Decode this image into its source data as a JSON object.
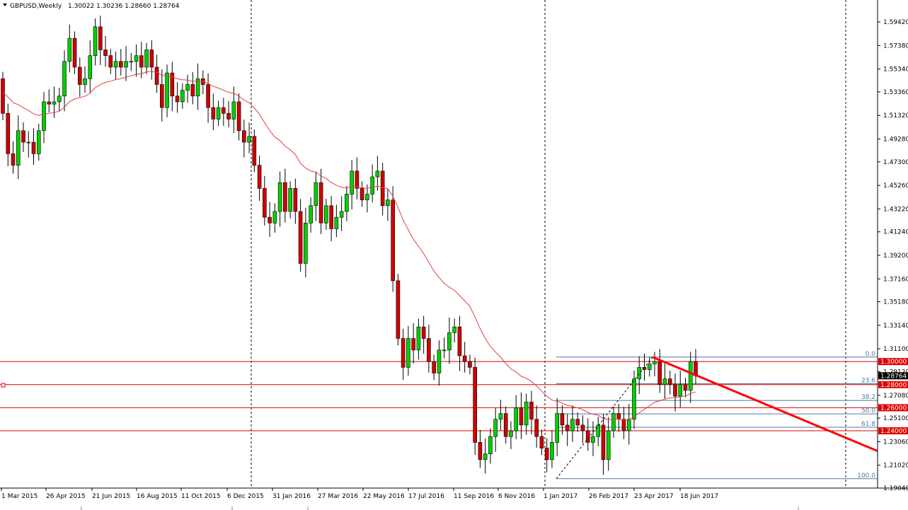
{
  "header": {
    "symbol": "GBPUSD,Weekly",
    "ohlc": "1.30022 1.30236 1.28660 1.28764"
  },
  "colors": {
    "bull": "#00d000",
    "bear": "#d00000",
    "ma": "#e04040",
    "level": "#e00000",
    "fib": "#5078a0",
    "trend": "#ff0000"
  },
  "chart_data": {
    "type": "candlestick",
    "ylim": [
      1.19,
      1.605
    ],
    "y_ticks": [
      "1.59420",
      "1.57380",
      "1.55340",
      "1.53360",
      "1.51320",
      "1.49280",
      "1.47300",
      "1.45260",
      "1.43220",
      "1.41240",
      "1.39200",
      "1.37160",
      "1.35180",
      "1.33140",
      "1.31100",
      "1.29120",
      "1.27080",
      "1.25100",
      "1.23060",
      "1.21020",
      "1.19040"
    ],
    "x_labels": [
      "1 Mar 2015",
      "26 Apr 2015",
      "21 Jun 2015",
      "16 Aug 2015",
      "11 Oct 2015",
      "6 Dec 2015",
      "31 Jan 2016",
      "27 Mar 2016",
      "22 May 2016",
      "17 Jul 2016",
      "11 Sep 2016",
      "6 Nov 2016",
      "1 Jan 2017",
      "26 Feb 2017",
      "23 Apr 2017",
      "18 Jun 2017"
    ],
    "closes": [
      1.515,
      1.48,
      1.47,
      1.5,
      1.49,
      1.49,
      1.48,
      1.5,
      1.525,
      1.523,
      1.525,
      1.53,
      1.56,
      1.58,
      1.555,
      1.54,
      1.545,
      1.565,
      1.59,
      1.57,
      1.565,
      1.555,
      1.56,
      1.555,
      1.56,
      1.56,
      1.565,
      1.555,
      1.57,
      1.555,
      1.54,
      1.52,
      1.55,
      1.53,
      1.525,
      1.535,
      1.54,
      1.53,
      1.545,
      1.54,
      1.52,
      1.51,
      1.52,
      1.515,
      1.51,
      1.525,
      1.5,
      1.49,
      1.495,
      1.47,
      1.45,
      1.425,
      1.42,
      1.43,
      1.455,
      1.43,
      1.45,
      1.43,
      1.385,
      1.42,
      1.435,
      1.455,
      1.42,
      1.435,
      1.415,
      1.425,
      1.43,
      1.445,
      1.465,
      1.45,
      1.44,
      1.445,
      1.46,
      1.465,
      1.435,
      1.44,
      1.37,
      1.32,
      1.295,
      1.32,
      1.31,
      1.33,
      1.32,
      1.3,
      1.29,
      1.31,
      1.31,
      1.325,
      1.33,
      1.305,
      1.3,
      1.295,
      1.23,
      1.215,
      1.22,
      1.235,
      1.25,
      1.255,
      1.235,
      1.24,
      1.26,
      1.245,
      1.265,
      1.25,
      1.235,
      1.225,
      1.215,
      1.23,
      1.255,
      1.245,
      1.24,
      1.25,
      1.245,
      1.24,
      1.23,
      1.235,
      1.245,
      1.215,
      1.24,
      1.255,
      1.25,
      1.24,
      1.25,
      1.285,
      1.295,
      1.293,
      1.298,
      1.3,
      1.28,
      1.285,
      1.28,
      1.27,
      1.28,
      1.275,
      1.3,
      1.2876
    ],
    "moving_average": "smoothed 20-period",
    "horizontal_levels": [
      {
        "price": 1.3,
        "label": "1.30000"
      },
      {
        "price": 1.28,
        "label": "1.28000"
      },
      {
        "price": 1.26,
        "label": "1.26000"
      },
      {
        "price": 1.24,
        "label": "1.24000"
      }
    ],
    "current_price": {
      "price": 1.28764,
      "label": "1.28764"
    },
    "fibonacci": [
      {
        "label": "0.0",
        "price": 1.3039
      },
      {
        "label": "23.6",
        "price": 1.2808
      },
      {
        "label": "38.2",
        "price": 1.2663
      },
      {
        "label": "50.0",
        "price": 1.2547
      },
      {
        "label": "61.8",
        "price": 1.2431
      },
      {
        "label": "100.0",
        "price": 1.1985
      }
    ],
    "grid": false
  }
}
